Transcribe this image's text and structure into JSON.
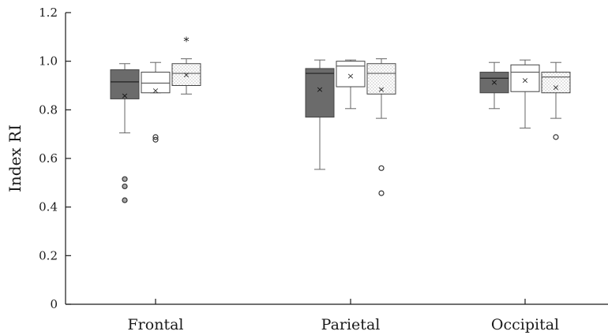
{
  "chart_data": {
    "type": "box",
    "ylabel": "Index RI",
    "ylim": [
      0,
      1.2
    ],
    "yticks": [
      0,
      0.2,
      0.4,
      0.6,
      0.8,
      1.0,
      1.2
    ],
    "ytick_labels": [
      "0",
      "0.2",
      "0.4",
      "0.6",
      "0.8",
      "1.0",
      "1.2"
    ],
    "categories": [
      "Frontal",
      "Parietal",
      "Occipital"
    ],
    "series_styles": [
      {
        "fill": "#6b6b6b",
        "pattern": "solid"
      },
      {
        "fill": "#ffffff",
        "pattern": "none"
      },
      {
        "fill": "#ffffff",
        "pattern": "dots"
      }
    ],
    "groups": [
      {
        "category": "Frontal",
        "boxes": [
          {
            "q1": 0.845,
            "median": 0.915,
            "q3": 0.965,
            "whisker_low": 0.705,
            "whisker_high": 0.99,
            "mean": 0.86,
            "outliers": [
              0.515,
              0.485,
              0.428
            ],
            "outlier_style": "filled"
          },
          {
            "q1": 0.87,
            "median": 0.91,
            "q3": 0.955,
            "whisker_low": 0.87,
            "whisker_high": 0.995,
            "mean": 0.88,
            "outliers": [
              0.688,
              0.677
            ],
            "outlier_style": "open"
          },
          {
            "q1": 0.9,
            "median": 0.95,
            "q3": 0.99,
            "whisker_low": 0.865,
            "whisker_high": 1.01,
            "mean": 0.945,
            "outliers": [
              1.095
            ],
            "outlier_style": "star"
          }
        ]
      },
      {
        "category": "Parietal",
        "boxes": [
          {
            "q1": 0.77,
            "median": 0.95,
            "q3": 0.97,
            "whisker_low": 0.555,
            "whisker_high": 1.005,
            "mean": 0.885,
            "outliers": [],
            "outlier_style": "open"
          },
          {
            "q1": 0.895,
            "median": 0.98,
            "q3": 1.0,
            "whisker_low": 0.805,
            "whisker_high": 1.005,
            "mean": 0.94,
            "outliers": [],
            "outlier_style": "open"
          },
          {
            "q1": 0.865,
            "median": 0.95,
            "q3": 0.99,
            "whisker_low": 0.765,
            "whisker_high": 1.01,
            "mean": 0.885,
            "outliers": [
              0.56,
              0.457
            ],
            "outlier_style": "open"
          }
        ]
      },
      {
        "category": "Occipital",
        "boxes": [
          {
            "q1": 0.87,
            "median": 0.93,
            "q3": 0.955,
            "whisker_low": 0.805,
            "whisker_high": 0.995,
            "mean": 0.915,
            "outliers": [],
            "outlier_style": "open"
          },
          {
            "q1": 0.875,
            "median": 0.955,
            "q3": 0.985,
            "whisker_low": 0.725,
            "whisker_high": 1.005,
            "mean": 0.922,
            "outliers": [],
            "outlier_style": "open"
          },
          {
            "q1": 0.87,
            "median": 0.935,
            "q3": 0.955,
            "whisker_low": 0.765,
            "whisker_high": 0.995,
            "mean": 0.893,
            "outliers": [
              0.688
            ],
            "outlier_style": "open"
          }
        ]
      }
    ],
    "grid": false,
    "legend": "none"
  }
}
